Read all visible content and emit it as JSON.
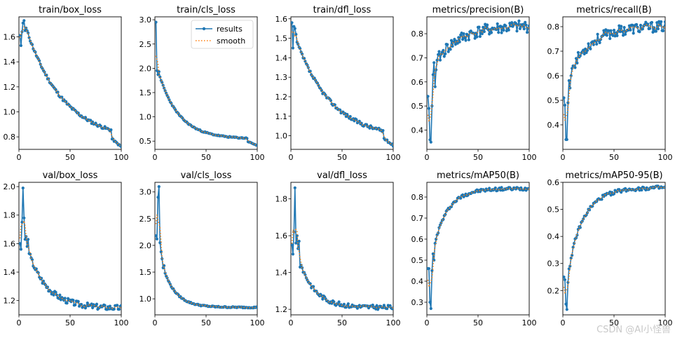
{
  "legend": {
    "results_label": "results",
    "smooth_label": "smooth",
    "results_color": "#1f77b4",
    "smooth_color": "#ff7f0e"
  },
  "watermark": "CSDN @AI小怪兽",
  "chart_data": [
    {
      "type": "line",
      "title": "train/box_loss",
      "xlim": [
        0,
        100
      ],
      "ylim": [
        0.7,
        1.76
      ],
      "xticks": [
        0,
        50,
        100
      ],
      "yticks": [
        0.8,
        1.0,
        1.2,
        1.4,
        1.6
      ],
      "start": [
        [
          1,
          1.61
        ],
        [
          2,
          1.53
        ],
        [
          3,
          1.64
        ],
        [
          4,
          1.71
        ],
        [
          5,
          1.73
        ],
        [
          6,
          1.65
        ],
        [
          7,
          1.67
        ]
      ],
      "end": 0.72,
      "curve": 0.85,
      "noise": 0.012,
      "drop_at": 90,
      "drop_to": 0.79,
      "seed": 11
    },
    {
      "type": "line",
      "title": "train/cls_loss",
      "xlim": [
        0,
        100
      ],
      "ylim": [
        0.33,
        3.06
      ],
      "xticks": [
        0,
        50,
        100
      ],
      "yticks": [
        0.5,
        1.0,
        1.5,
        2.0,
        2.5,
        3.0
      ],
      "start": [
        [
          1,
          2.95
        ],
        [
          2,
          1.95
        ],
        [
          3,
          1.87
        ],
        [
          4,
          1.93
        ],
        [
          5,
          1.82
        ]
      ],
      "end": 0.41,
      "curve": 1.6,
      "noise": 0.012,
      "drop_at": 90,
      "drop_to": 0.5,
      "seed": 23,
      "legend": true
    },
    {
      "type": "line",
      "title": "train/dfl_loss",
      "xlim": [
        0,
        100
      ],
      "ylim": [
        0.93,
        1.61
      ],
      "xticks": [
        0,
        50,
        100
      ],
      "yticks": [
        1.0,
        1.1,
        1.2,
        1.3,
        1.4,
        1.5,
        1.6
      ],
      "start": [
        [
          1,
          1.58
        ],
        [
          2,
          1.45
        ],
        [
          3,
          1.56
        ],
        [
          4,
          1.55
        ],
        [
          5,
          1.52
        ],
        [
          6,
          1.48
        ]
      ],
      "end": 0.95,
      "curve": 0.9,
      "noise": 0.009,
      "drop_at": 90,
      "drop_to": 0.99,
      "seed": 37
    },
    {
      "type": "line",
      "title": "metrics/precision(B)",
      "xlim": [
        0,
        100
      ],
      "ylim": [
        0.32,
        0.87
      ],
      "xticks": [
        0,
        50,
        100
      ],
      "yticks": [
        0.4,
        0.5,
        0.6,
        0.7,
        0.8
      ],
      "start": [
        [
          1,
          0.54
        ],
        [
          2,
          0.49
        ],
        [
          3,
          0.36
        ],
        [
          4,
          0.35
        ],
        [
          5,
          0.5
        ],
        [
          6,
          0.63
        ],
        [
          7,
          0.68
        ],
        [
          8,
          0.58
        ],
        [
          9,
          0.65
        ],
        [
          10,
          0.69
        ]
      ],
      "end": 0.83,
      "curve": 1.3,
      "noise": 0.025,
      "seed": 41,
      "rising": true
    },
    {
      "type": "line",
      "title": "metrics/recall(B)",
      "xlim": [
        0,
        100
      ],
      "ylim": [
        0.3,
        0.84
      ],
      "xticks": [
        0,
        50,
        100
      ],
      "yticks": [
        0.4,
        0.5,
        0.6,
        0.7,
        0.8
      ],
      "start": [
        [
          1,
          0.51
        ],
        [
          2,
          0.48
        ],
        [
          3,
          0.34
        ],
        [
          4,
          0.34
        ],
        [
          5,
          0.49
        ],
        [
          6,
          0.58
        ],
        [
          7,
          0.55
        ],
        [
          8,
          0.6
        ],
        [
          9,
          0.63
        ],
        [
          10,
          0.64
        ]
      ],
      "end": 0.8,
      "curve": 1.4,
      "noise": 0.022,
      "seed": 53,
      "rising": true
    },
    {
      "type": "line",
      "title": "val/box_loss",
      "xlim": [
        0,
        100
      ],
      "ylim": [
        1.1,
        2.03
      ],
      "xticks": [
        0,
        50,
        100
      ],
      "yticks": [
        1.2,
        1.4,
        1.6,
        1.8,
        2.0
      ],
      "start": [
        [
          1,
          1.6
        ],
        [
          2,
          1.56
        ],
        [
          3,
          1.75
        ],
        [
          4,
          1.99
        ],
        [
          5,
          1.78
        ],
        [
          6,
          1.63
        ],
        [
          7,
          1.65
        ],
        [
          8,
          1.58
        ],
        [
          9,
          1.63
        ],
        [
          10,
          1.53
        ]
      ],
      "end": 1.15,
      "curve": 1.6,
      "noise": 0.02,
      "seed": 67
    },
    {
      "type": "line",
      "title": "val/cls_loss",
      "xlim": [
        0,
        100
      ],
      "ylim": [
        0.7,
        3.18
      ],
      "xticks": [
        0,
        50,
        100
      ],
      "yticks": [
        1.0,
        1.5,
        2.0,
        2.5,
        3.0
      ],
      "start": [
        [
          1,
          2.18
        ],
        [
          2,
          2.12
        ],
        [
          3,
          2.9
        ],
        [
          4,
          3.1
        ],
        [
          5,
          2.05
        ],
        [
          6,
          1.88
        ],
        [
          7,
          1.75
        ],
        [
          8,
          1.58
        ],
        [
          9,
          1.62
        ],
        [
          10,
          1.48
        ]
      ],
      "end": 0.84,
      "curve": 2.4,
      "noise": 0.012,
      "seed": 79
    },
    {
      "type": "line",
      "title": "val/dfl_loss",
      "xlim": [
        0,
        100
      ],
      "ylim": [
        1.17,
        1.89
      ],
      "xticks": [
        0,
        50,
        100
      ],
      "yticks": [
        1.2,
        1.4,
        1.6,
        1.8
      ],
      "start": [
        [
          1,
          1.55
        ],
        [
          2,
          1.5
        ],
        [
          3,
          1.62
        ],
        [
          4,
          1.86
        ],
        [
          5,
          1.56
        ],
        [
          6,
          1.6
        ],
        [
          7,
          1.53
        ],
        [
          8,
          1.57
        ],
        [
          9,
          1.43
        ],
        [
          10,
          1.44
        ]
      ],
      "end": 1.21,
      "curve": 2.0,
      "noise": 0.012,
      "seed": 83
    },
    {
      "type": "line",
      "title": "metrics/mAP50(B)",
      "xlim": [
        0,
        100
      ],
      "ylim": [
        0.24,
        0.87
      ],
      "xticks": [
        0,
        50,
        100
      ],
      "yticks": [
        0.3,
        0.4,
        0.5,
        0.6,
        0.7,
        0.8
      ],
      "start": [
        [
          1,
          0.46
        ],
        [
          2,
          0.46
        ],
        [
          3,
          0.3
        ],
        [
          4,
          0.27
        ],
        [
          5,
          0.45
        ],
        [
          6,
          0.53
        ],
        [
          7,
          0.5
        ],
        [
          8,
          0.58
        ],
        [
          9,
          0.6
        ],
        [
          10,
          0.62
        ]
      ],
      "end": 0.84,
      "curve": 2.2,
      "noise": 0.008,
      "seed": 97,
      "rising": true
    },
    {
      "type": "line",
      "title": "metrics/mAP50-95(B)",
      "xlim": [
        0,
        100
      ],
      "ylim": [
        0.11,
        0.6
      ],
      "xticks": [
        0,
        50,
        100
      ],
      "yticks": [
        0.2,
        0.3,
        0.4,
        0.5,
        0.6
      ],
      "start": [
        [
          1,
          0.25
        ],
        [
          2,
          0.24
        ],
        [
          3,
          0.15
        ],
        [
          4,
          0.13
        ],
        [
          5,
          0.23
        ],
        [
          6,
          0.28
        ],
        [
          7,
          0.29
        ],
        [
          8,
          0.32
        ],
        [
          9,
          0.33
        ],
        [
          10,
          0.36
        ]
      ],
      "end": 0.58,
      "curve": 1.9,
      "noise": 0.007,
      "seed": 109,
      "rising": true
    }
  ]
}
